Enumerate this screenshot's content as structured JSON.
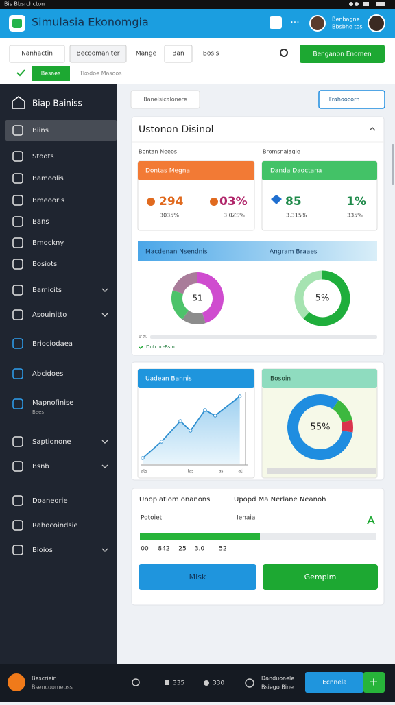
{
  "status_bar": {
    "left": "Bis Bbsrchcton"
  },
  "header": {
    "title": "Simulasia Ekonomgia",
    "user_name": "Benbagne",
    "user_sub": "Bbsbhe tos"
  },
  "toolbar": {
    "tabs": [
      "Nanhactin",
      "Becoomaniter",
      "Mange",
      "Ban",
      "Bosis"
    ],
    "action": "Benganon Enomen",
    "subtabs": [
      "Besaes",
      "Tkodoe Masoos"
    ]
  },
  "sidebar": {
    "title": "Biap Bainiss",
    "items": [
      "Biins",
      "Stoots",
      "Bamoolis",
      "Bmeoorls",
      "Bans",
      "Bmockny",
      "Bosiots",
      "Bamicits",
      "Asouinitto",
      "Briociodaea",
      "Abcidoes",
      "Mapnofinise",
      "Saptionone",
      "Bsnb",
      "Doaneorie",
      "Rahocoindsie",
      "Bioios"
    ],
    "item_sub": "Bees"
  },
  "main": {
    "button_left": "Banelsicalonere",
    "button_right": "Frahoocorn"
  },
  "overview": {
    "title": "Ustonon Disinol",
    "label_left": "Bentan Neeos",
    "label_right": "Bromsnalagle",
    "card_orange": {
      "title": "Dontas Megna",
      "value_a": "294",
      "value_b": "03%",
      "sub_a": "3035%",
      "sub_b": "3.0ZS%"
    },
    "card_green": {
      "title": "Danda Daoctana",
      "value_a": "85",
      "value_b": "1%",
      "sub_a": "3.315%",
      "sub_b": "335%"
    },
    "banner_left": "Macdenan Nsendnis",
    "banner_right": "Angram Braaes",
    "donut_left": {
      "center": "51",
      "values": [
        45,
        15,
        20,
        20
      ],
      "colors": [
        "#cf4ccf",
        "#8c8c8c",
        "#4cc36a",
        "#a97c9a"
      ]
    },
    "donut_right": {
      "center": "5%",
      "values": [
        62,
        38
      ],
      "colors": [
        "#1fae3c",
        "#a6e3b1"
      ]
    },
    "footer_small": "1'30",
    "footer_status": "Dutcnc-Bsin"
  },
  "trend": {
    "line_title": "Uadean Bannis",
    "x": [
      0,
      1.3,
      2.6,
      3.3,
      4.3,
      5,
      6.7
    ],
    "values": [
      8,
      32,
      62,
      48,
      78,
      70,
      98
    ],
    "xlim": [
      0,
      7
    ],
    "ylim": [
      0,
      100
    ],
    "x_labels": [
      "ats",
      "Ias",
      "as",
      "rati"
    ],
    "pie_title": "Bosoin",
    "pie_center": "55%",
    "pie_values": [
      82,
      12,
      6
    ],
    "pie_colors": [
      "#1f8de0",
      "#3db83f",
      "#d9344d"
    ]
  },
  "summary": {
    "title_left": "Unoplatiom onanons",
    "title_right": "Upopd Ma Nerlane Neanoh",
    "label_left": "Potoiet",
    "label_right": "Ienaia",
    "numbers": [
      "00",
      "842",
      "25",
      "3.0",
      "52"
    ],
    "button_blue": "Mlsk",
    "button_green": "Gemplm"
  },
  "bottom_bar": {
    "name": "Bescriein",
    "sub": "Bsencoomeoss",
    "count_a": "335",
    "count_b": "330",
    "info_a": "Danduoaele",
    "info_b": "Bsiego Bine",
    "button": "Ecnnela"
  }
}
